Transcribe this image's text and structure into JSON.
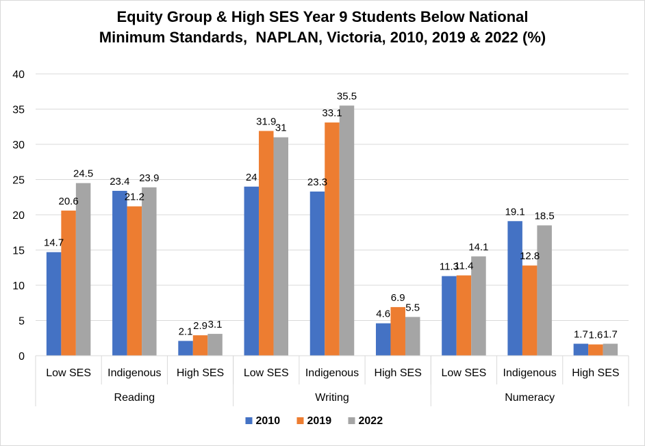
{
  "chart_data": {
    "type": "bar",
    "title_line1": "Equity Group & High SES Year 9 Students Below National",
    "title_line2": "Minimum Standards,  NAPLAN, Victoria, 2010, 2019 & 2022 (%)",
    "groups": [
      "Reading",
      "Writing",
      "Numeracy"
    ],
    "categories": [
      "Low SES",
      "Indigenous",
      "High SES",
      "Low SES",
      "Indigenous",
      "High SES",
      "Low SES",
      "Indigenous",
      "High SES"
    ],
    "series": [
      {
        "name": "2010",
        "color": "#4472c4",
        "values": [
          14.7,
          23.4,
          2.1,
          24,
          23.3,
          4.6,
          11.3,
          19.1,
          1.7
        ]
      },
      {
        "name": "2019",
        "color": "#ed7d31",
        "values": [
          20.6,
          21.2,
          2.9,
          31.9,
          33.1,
          6.9,
          11.4,
          12.8,
          1.6
        ]
      },
      {
        "name": "2022",
        "color": "#a5a5a5",
        "values": [
          24.5,
          23.9,
          3.1,
          31,
          35.5,
          5.5,
          14.1,
          18.5,
          1.7
        ]
      }
    ],
    "ylim": [
      0,
      40
    ],
    "yticks": [
      0,
      5,
      10,
      15,
      20,
      25,
      30,
      35,
      40
    ],
    "grid": true,
    "legend": "bottom"
  }
}
